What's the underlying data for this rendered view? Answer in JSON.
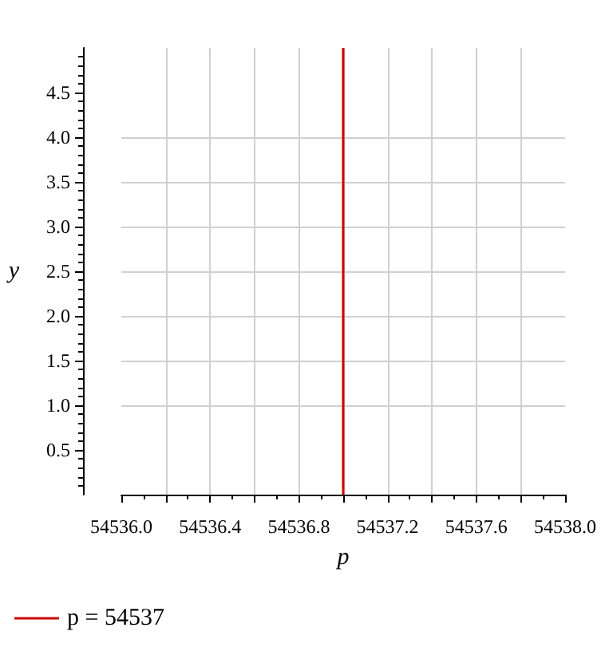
{
  "chart_data": {
    "type": "line",
    "xlabel": "p",
    "ylabel": "y",
    "x": [
      54537,
      54537
    ],
    "series": [
      {
        "name": "p = 54537",
        "color": "#cc0000",
        "values": [
          0,
          5
        ]
      }
    ],
    "xlim": [
      54536.0,
      54538.0
    ],
    "xticks": [
      {
        "value": 54536.0,
        "label": "54536.0"
      },
      {
        "value": 54536.2,
        "label": null
      },
      {
        "value": 54536.4,
        "label": "54536.4"
      },
      {
        "value": 54536.6,
        "label": null
      },
      {
        "value": 54536.8,
        "label": "54536.8"
      },
      {
        "value": 54537.0,
        "label": null
      },
      {
        "value": 54537.2,
        "label": "54537.2"
      },
      {
        "value": 54537.4,
        "label": null
      },
      {
        "value": 54537.6,
        "label": "54537.6"
      },
      {
        "value": 54537.8,
        "label": null
      },
      {
        "value": 54538.0,
        "label": "54538.0"
      }
    ],
    "ylim": [
      0,
      5
    ],
    "yticks": [
      {
        "value": 0.5,
        "label": "0.5"
      },
      {
        "value": 1.0,
        "label": "1.0"
      },
      {
        "value": 1.5,
        "label": "1.5"
      },
      {
        "value": 2.0,
        "label": "2.0"
      },
      {
        "value": 2.5,
        "label": "2.5"
      },
      {
        "value": 3.0,
        "label": "3.0"
      },
      {
        "value": 3.5,
        "label": "3.5"
      },
      {
        "value": 4.0,
        "label": "4.0"
      },
      {
        "value": 4.5,
        "label": "4.5"
      }
    ],
    "grid": true,
    "legend": "bottom left",
    "line_style": "solid",
    "marker": "none"
  }
}
